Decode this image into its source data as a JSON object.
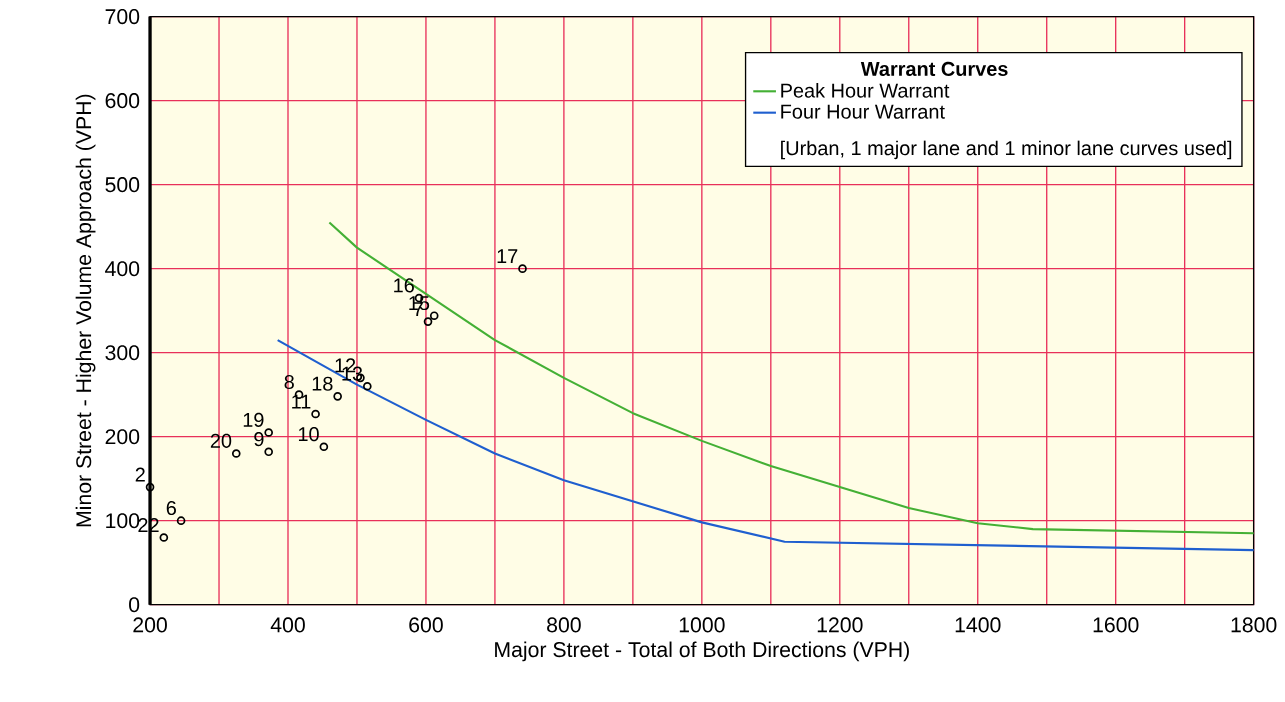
{
  "chart_data": {
    "type": "scatter",
    "xlabel": "Major Street - Total of Both Directions (VPH)",
    "ylabel": "Minor Street - Higher Volume Approach (VPH)",
    "legend_title": "Warrant Curves",
    "annotations": [
      "[Urban,  1 major lane and 1 minor lane curves used]",
      {
        "text": "2",
        "x": 200,
        "y": 140
      },
      {
        "text": "22",
        "x": 220,
        "y": 80
      },
      {
        "text": "6",
        "x": 245,
        "y": 100
      },
      {
        "text": "20",
        "x": 325,
        "y": 180
      },
      {
        "text": "9",
        "x": 372,
        "y": 182
      },
      {
        "text": "19",
        "x": 372,
        "y": 205
      },
      {
        "text": "8",
        "x": 416,
        "y": 250
      },
      {
        "text": "11",
        "x": 440,
        "y": 227
      },
      {
        "text": "10",
        "x": 452,
        "y": 188
      },
      {
        "text": "18",
        "x": 472,
        "y": 248
      },
      {
        "text": "12",
        "x": 505,
        "y": 270
      },
      {
        "text": "13",
        "x": 515,
        "y": 260
      },
      {
        "text": "16",
        "x": 590,
        "y": 365
      },
      {
        "text": "7",
        "x": 603,
        "y": 337
      },
      {
        "text": "15",
        "x": 612,
        "y": 344
      },
      {
        "text": "17",
        "x": 740,
        "y": 400
      }
    ],
    "xlim": [
      200,
      1800
    ],
    "ylim": [
      0,
      700
    ],
    "xticks": [
      200,
      {
        "value": 300,
        "label": null
      },
      400,
      {
        "value": 500,
        "label": null
      },
      600,
      {
        "value": 700,
        "label": null
      },
      800,
      {
        "value": 900,
        "label": null
      },
      1000,
      {
        "value": 1100,
        "label": null
      },
      1200,
      {
        "value": 1300,
        "label": null
      },
      1400,
      {
        "value": 1500,
        "label": null
      },
      1600,
      {
        "value": 1700,
        "label": null
      },
      1800
    ],
    "yticks": [
      0,
      100,
      200,
      300,
      400,
      500,
      600,
      700
    ],
    "grid": true,
    "legend": "top right",
    "series": [
      {
        "color": "#000000",
        "marker": "circle",
        "x": [
          200,
          220,
          245,
          325,
          372,
          372,
          416,
          440,
          452,
          472,
          505,
          515,
          590,
          603,
          612,
          740
        ],
        "values": [
          140,
          80,
          100,
          180,
          182,
          205,
          250,
          227,
          188,
          248,
          270,
          260,
          365,
          337,
          344,
          400
        ]
      },
      {
        "type": "line",
        "name": "Peak Hour Warrant",
        "color": "#44b035",
        "x": [
          460,
          500,
          600,
          700,
          800,
          900,
          1000,
          1100,
          1200,
          1300,
          1400,
          1480,
          1800
        ],
        "values": [
          455,
          425,
          370,
          315,
          270,
          228,
          195,
          165,
          140,
          115,
          97,
          90,
          85
        ]
      },
      {
        "type": "line",
        "name": "Four Hour Warrant",
        "color": "#1f5fcf",
        "x": [
          385,
          500,
          600,
          700,
          800,
          900,
          1000,
          1120,
          1800
        ],
        "values": [
          315,
          262,
          220,
          180,
          148,
          123,
          98,
          75,
          65
        ]
      }
    ]
  }
}
